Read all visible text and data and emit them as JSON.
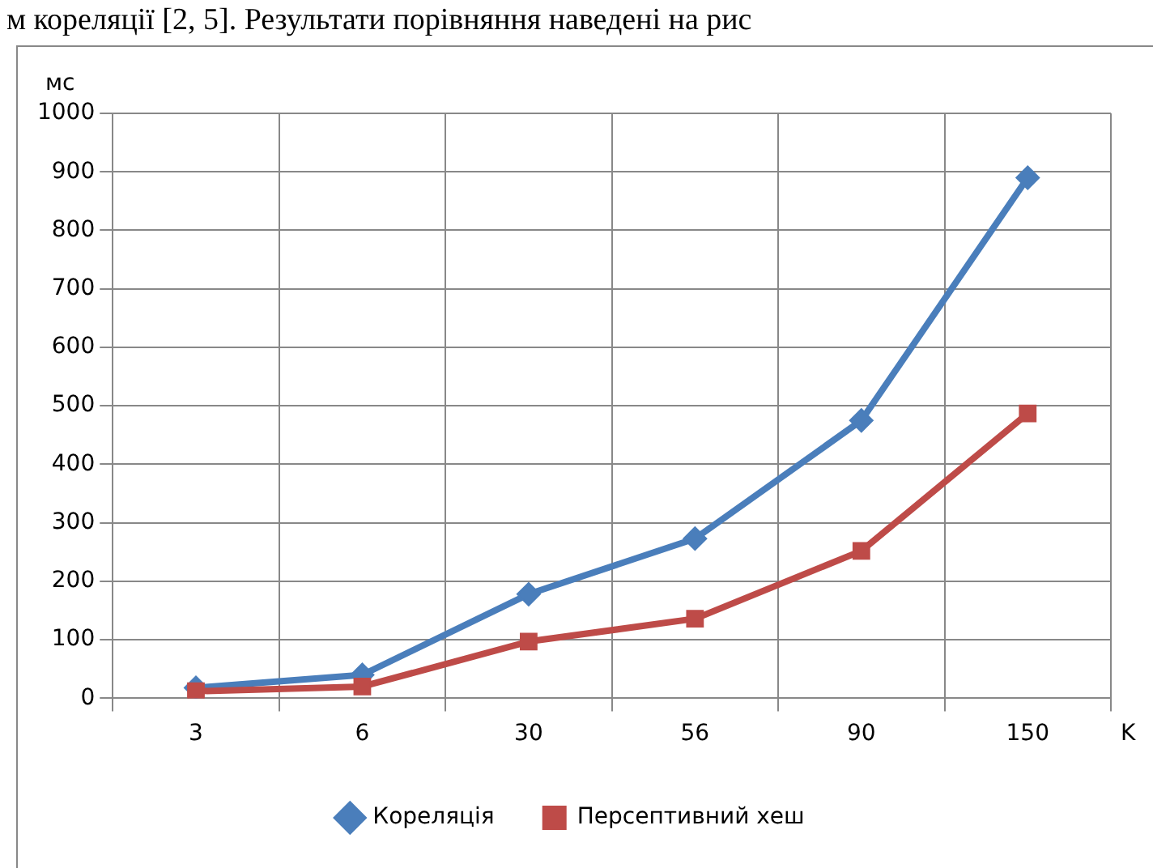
{
  "chart_data": {
    "type": "line",
    "categories": [
      "3",
      "6",
      "30",
      "56",
      "90",
      "150"
    ],
    "series": [
      {
        "name": "Кореляція",
        "color": "#4a7ebb",
        "marker": "diamond",
        "values": [
          18,
          40,
          178,
          273,
          475,
          890
        ]
      },
      {
        "name": "Персептивний хеш",
        "color": "#be4b48",
        "marker": "square",
        "values": [
          12,
          20,
          97,
          136,
          252,
          487
        ]
      }
    ],
    "ylim": [
      0,
      1000
    ],
    "yticks": [
      0,
      100,
      200,
      300,
      400,
      500,
      600,
      700,
      800,
      900,
      1000
    ],
    "ylabel": "мс",
    "xlabel": "K",
    "grid": true,
    "legend": "bottom",
    "line_style": "solid",
    "annotations": [
      "м кореляції [2, 5]. Результати порівняння наведені на рис"
    ]
  }
}
